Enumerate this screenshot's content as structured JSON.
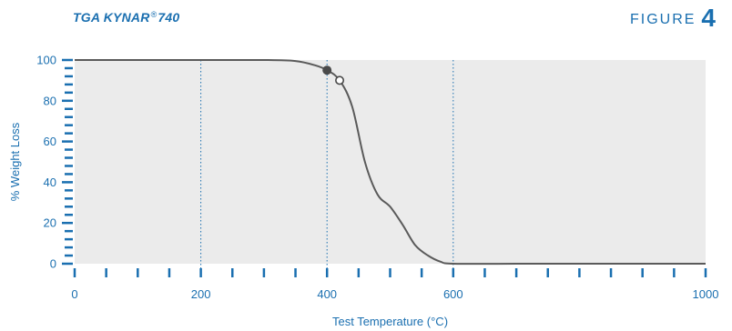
{
  "header": {
    "title_main": "TGA KYNAR",
    "title_mark": "®",
    "title_num": "740",
    "figure_word": "FIGURE",
    "figure_num": "4"
  },
  "chart_data": {
    "type": "line",
    "title": "TGA KYNAR® 740",
    "xlabel": "Test Temperature (°C)",
    "ylabel": "% Weight Loss",
    "xlim": [
      0,
      1000
    ],
    "ylim": [
      0,
      100
    ],
    "x_ticks": [
      0,
      200,
      400,
      600,
      1000
    ],
    "y_ticks": [
      0,
      20,
      40,
      60,
      80,
      100
    ],
    "x_minor_step": 50,
    "y_minor_step": 4,
    "vertical_gridlines": [
      200,
      400,
      600
    ],
    "grid": "dotted vertical",
    "series": [
      {
        "values": [
          {
            "x": 0,
            "y": 100
          },
          {
            "x": 100,
            "y": 100
          },
          {
            "x": 200,
            "y": 100
          },
          {
            "x": 300,
            "y": 100
          },
          {
            "x": 350,
            "y": 99.5
          },
          {
            "x": 380,
            "y": 97.5
          },
          {
            "x": 400,
            "y": 95
          },
          {
            "x": 420,
            "y": 90
          },
          {
            "x": 440,
            "y": 77
          },
          {
            "x": 460,
            "y": 50
          },
          {
            "x": 480,
            "y": 34
          },
          {
            "x": 500,
            "y": 28
          },
          {
            "x": 520,
            "y": 19
          },
          {
            "x": 540,
            "y": 9
          },
          {
            "x": 560,
            "y": 4
          },
          {
            "x": 580,
            "y": 1
          },
          {
            "x": 600,
            "y": 0
          },
          {
            "x": 700,
            "y": 0
          },
          {
            "x": 800,
            "y": 0
          },
          {
            "x": 1000,
            "y": 0
          }
        ]
      }
    ],
    "markers": [
      {
        "x": 400,
        "y": 95,
        "style": "filled"
      },
      {
        "x": 420,
        "y": 90,
        "style": "open"
      }
    ],
    "colors": {
      "plot_background": "#ebebeb",
      "line": "#5a5a5a",
      "axis": "#1a6fb0",
      "grid": "#1a6fb0"
    }
  }
}
